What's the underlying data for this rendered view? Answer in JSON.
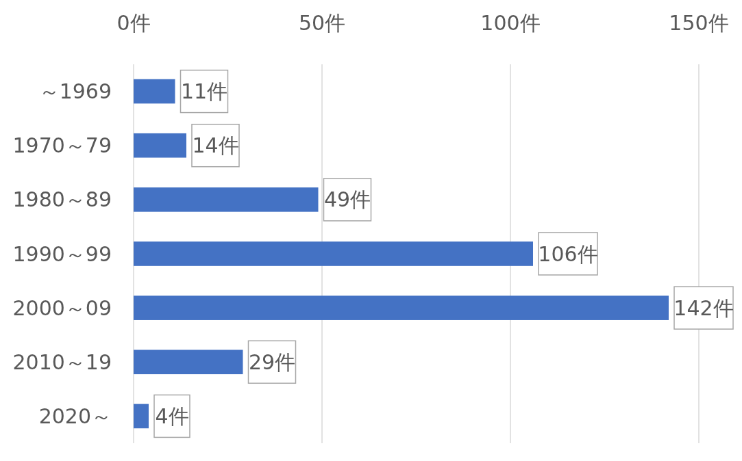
{
  "chart_data": {
    "type": "bar",
    "orientation": "horizontal",
    "categories": [
      "～1969",
      "1970～79",
      "1980～89",
      "1990～99",
      "2000～09",
      "2010～19",
      "2020～"
    ],
    "values": [
      11,
      14,
      49,
      106,
      142,
      29,
      4
    ],
    "value_labels": [
      "11件",
      "14件",
      "49件",
      "106件",
      "142件",
      "29件",
      "4件"
    ],
    "color": "#4472c4",
    "xlim": [
      0,
      150
    ],
    "xticks": [
      {
        "value": 0,
        "label": "0件"
      },
      {
        "value": 50,
        "label": "50件"
      },
      {
        "value": 100,
        "label": "100件"
      },
      {
        "value": 150,
        "label": "150件"
      }
    ],
    "grid": "x"
  }
}
